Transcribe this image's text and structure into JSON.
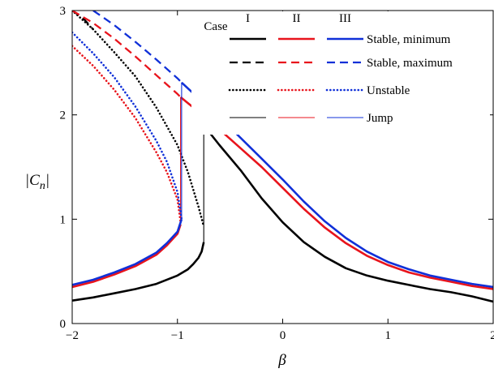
{
  "chart_data": {
    "type": "line",
    "xlabel": "β",
    "ylabel": "|C",
    "ylabel_sub": "n",
    "xlim": [
      -2,
      2
    ],
    "ylim": [
      0,
      3
    ],
    "xticks": [
      -2,
      -1,
      0,
      1,
      2
    ],
    "xtick_labels": [
      "−2",
      "−1",
      "0",
      "1",
      "2"
    ],
    "yticks": [
      0,
      1,
      2,
      3
    ],
    "ytick_labels": [
      "0",
      "1",
      "2",
      "3"
    ],
    "grid": false,
    "legend": {
      "placement": "top-right",
      "header": "Case",
      "cases": [
        "I",
        "II",
        "III"
      ],
      "rows": [
        "Stable, minimum",
        "Stable, maximum",
        "Unstable",
        "Jump"
      ]
    },
    "colors": {
      "I": "#000000",
      "II": "#e8141c",
      "III": "#1030d8"
    },
    "series": [
      {
        "case": "I",
        "kind": "stable-min",
        "style": "solid",
        "x": [
          -2,
          -1.8,
          -1.6,
          -1.4,
          -1.2,
          -1.0,
          -0.9,
          -0.85,
          -0.8,
          -0.77,
          -0.75
        ],
        "y": [
          0.22,
          0.25,
          0.29,
          0.33,
          0.38,
          0.46,
          0.52,
          0.57,
          0.63,
          0.69,
          0.78
        ]
      },
      {
        "case": "I",
        "kind": "stable-min",
        "style": "solid",
        "x": [
          -0.75,
          -0.6,
          -0.4,
          -0.2,
          0,
          0.2,
          0.4,
          0.6,
          0.8,
          1.0,
          1.2,
          1.4,
          1.6,
          1.8,
          2.0
        ],
        "y": [
          1.9,
          1.71,
          1.47,
          1.2,
          0.97,
          0.78,
          0.64,
          0.53,
          0.46,
          0.41,
          0.37,
          0.33,
          0.3,
          0.26,
          0.21
        ]
      },
      {
        "case": "I",
        "kind": "stable-max",
        "style": "dashed",
        "x": [
          -2,
          -1.9,
          -1.8
        ],
        "y": [
          3.0,
          2.93,
          2.82
        ]
      },
      {
        "case": "I",
        "kind": "unstable",
        "style": "dotted",
        "x": [
          -2,
          -1.8,
          -1.6,
          -1.4,
          -1.2,
          -1.0,
          -0.9,
          -0.8,
          -0.75
        ],
        "y": [
          3.0,
          2.82,
          2.6,
          2.37,
          2.07,
          1.71,
          1.45,
          1.12,
          0.93
        ]
      },
      {
        "case": "I",
        "kind": "jump",
        "style": "thin",
        "x": [
          -0.75,
          -0.75
        ],
        "y": [
          0.78,
          1.9
        ]
      },
      {
        "case": "II",
        "kind": "stable-min",
        "style": "solid",
        "x": [
          -2,
          -1.8,
          -1.6,
          -1.4,
          -1.2,
          -1.1,
          -1.0,
          -0.97
        ],
        "y": [
          0.35,
          0.4,
          0.47,
          0.55,
          0.66,
          0.75,
          0.86,
          0.95
        ]
      },
      {
        "case": "II",
        "kind": "stable-min",
        "style": "solid",
        "x": [
          -0.97,
          -0.8,
          -0.6,
          -0.4,
          -0.2,
          0,
          0.2,
          0.4,
          0.6,
          0.8,
          1.0,
          1.2,
          1.4,
          1.6,
          1.8,
          2.0
        ],
        "y": [
          2.17,
          2.03,
          1.86,
          1.68,
          1.5,
          1.3,
          1.1,
          0.92,
          0.77,
          0.65,
          0.56,
          0.49,
          0.44,
          0.4,
          0.36,
          0.33
        ]
      },
      {
        "case": "II",
        "kind": "stable-max",
        "style": "dashed",
        "x": [
          -2,
          -1.8,
          -1.6,
          -1.4,
          -1.2,
          -1.0,
          -0.97
        ],
        "y": [
          3.0,
          2.88,
          2.73,
          2.56,
          2.38,
          2.2,
          2.17
        ]
      },
      {
        "case": "II",
        "kind": "unstable",
        "style": "dotted",
        "x": [
          -2,
          -1.8,
          -1.6,
          -1.4,
          -1.2,
          -1.1,
          -1.0,
          -0.97
        ],
        "y": [
          2.66,
          2.47,
          2.24,
          1.97,
          1.64,
          1.45,
          1.19,
          0.97
        ]
      },
      {
        "case": "II",
        "kind": "jump",
        "style": "thin",
        "x": [
          -0.97,
          -0.97
        ],
        "y": [
          0.95,
          2.17
        ]
      },
      {
        "case": "III",
        "kind": "stable-min",
        "style": "solid",
        "x": [
          -2,
          -1.8,
          -1.6,
          -1.4,
          -1.2,
          -1.1,
          -1.0,
          -0.96
        ],
        "y": [
          0.37,
          0.42,
          0.49,
          0.57,
          0.68,
          0.77,
          0.88,
          1.0
        ]
      },
      {
        "case": "III",
        "kind": "stable-min",
        "style": "solid",
        "x": [
          -0.96,
          -0.8,
          -0.6,
          -0.4,
          -0.2,
          0,
          0.2,
          0.4,
          0.6,
          0.8,
          1.0,
          1.2,
          1.4,
          1.6,
          1.8,
          2.0
        ],
        "y": [
          2.31,
          2.16,
          1.98,
          1.78,
          1.58,
          1.38,
          1.17,
          0.98,
          0.82,
          0.69,
          0.59,
          0.52,
          0.46,
          0.42,
          0.38,
          0.35
        ]
      },
      {
        "case": "III",
        "kind": "stable-max",
        "style": "dashed",
        "x": [
          -1.8,
          -1.6,
          -1.4,
          -1.2,
          -1.0,
          -0.96
        ],
        "y": [
          3.0,
          2.86,
          2.7,
          2.53,
          2.35,
          2.31
        ]
      },
      {
        "case": "III",
        "kind": "unstable",
        "style": "dotted",
        "x": [
          -2,
          -1.8,
          -1.6,
          -1.4,
          -1.2,
          -1.1,
          -1.0,
          -0.96
        ],
        "y": [
          2.79,
          2.59,
          2.36,
          2.08,
          1.75,
          1.55,
          1.26,
          1.0
        ]
      },
      {
        "case": "III",
        "kind": "jump",
        "style": "thin",
        "x": [
          -0.96,
          -0.96
        ],
        "y": [
          1.0,
          2.31
        ]
      }
    ]
  }
}
